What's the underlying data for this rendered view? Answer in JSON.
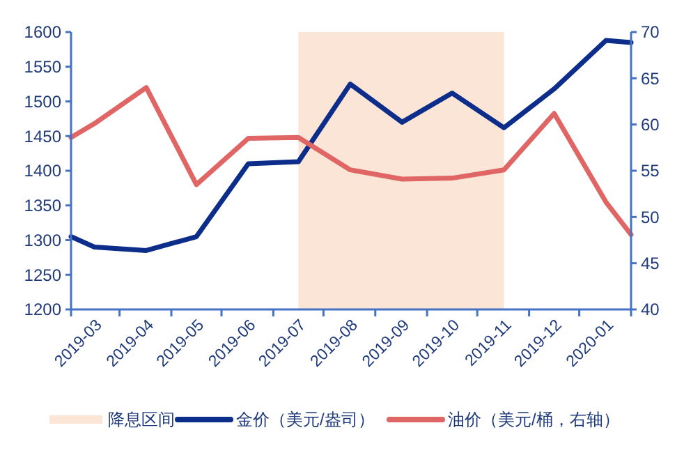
{
  "chart_data": {
    "type": "line",
    "x": [
      "2019-02-15",
      "2019-03",
      "2019-04",
      "2019-05",
      "2019-06",
      "2019-07",
      "2019-08",
      "2019-09",
      "2019-10",
      "2019-11",
      "2019-12",
      "2020-01",
      "2020-01-16"
    ],
    "series": [
      {
        "name": "金价（美元/盎司）",
        "color": "#0d2d8a",
        "values": [
          1305,
          1290,
          1285,
          1305,
          1410,
          1413,
          1525,
          1470,
          1512,
          1462,
          1518,
          1588,
          1585
        ]
      },
      {
        "name": "油价（美元/桶，右轴）",
        "color": "#e06666",
        "axis": "y2",
        "values": [
          58.6,
          60.1,
          64.0,
          53.5,
          58.5,
          58.6,
          55.1,
          54.1,
          54.2,
          55.1,
          61.2,
          51.6,
          48.1
        ]
      }
    ],
    "xlim": [
      "2019-02-15",
      "2020-01-16"
    ],
    "xticks": [
      {
        "value": "2019-02-15",
        "label": null
      },
      "2019-03",
      {
        "value": "2019-03-16",
        "label": null
      },
      "2019-04",
      {
        "value": "2019-04-16",
        "label": null
      },
      "2019-05",
      {
        "value": "2019-05-16",
        "label": null
      },
      "2019-06",
      {
        "value": "2019-06-16",
        "label": null
      },
      "2019-07",
      {
        "value": "2019-07-16",
        "label": null
      },
      "2019-08",
      {
        "value": "2019-08-16",
        "label": null
      },
      "2019-09",
      {
        "value": "2019-09-16",
        "label": null
      },
      "2019-10",
      {
        "value": "2019-10-16",
        "label": null
      },
      "2019-11",
      {
        "value": "2019-11-16",
        "label": null
      },
      "2019-12",
      {
        "value": "2019-12-16",
        "label": null
      },
      "2020-01",
      {
        "value": "2020-01-16",
        "label": null
      }
    ],
    "ylim": [
      1200,
      1600
    ],
    "yticks": [
      1200,
      1250,
      1300,
      1350,
      1400,
      1450,
      1500,
      1550,
      1600
    ],
    "y2lim": [
      40,
      70
    ],
    "y2ticks": [
      40,
      45,
      50,
      55,
      60,
      65,
      70
    ],
    "bands": [
      {
        "axis": "x",
        "from": "2019-07",
        "to": "2019-11",
        "label": "降息区间",
        "color": "#fbe5d6"
      }
    ],
    "grid": false,
    "legend": "bottom",
    "marker": "none",
    "line_style": "solid"
  }
}
